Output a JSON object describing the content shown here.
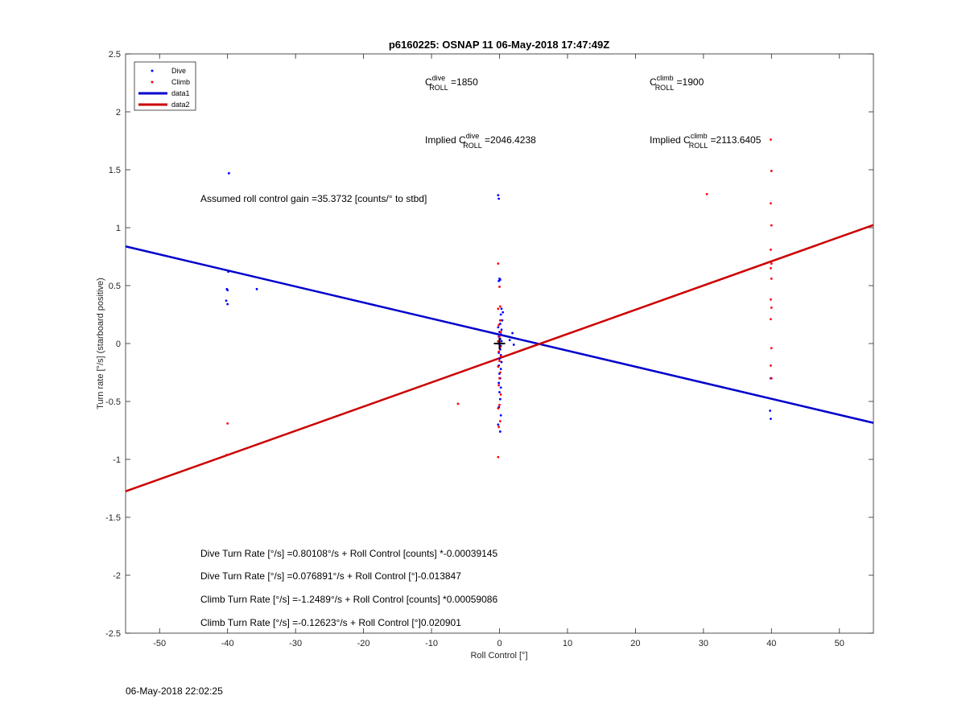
{
  "chart_data": {
    "type": "scatter",
    "title": "p6160225: OSNAP 11 06-May-2018 17:47:49Z",
    "xlabel": "Roll Control [°]",
    "ylabel": "Turn rate [°/s] (starboard positive)",
    "xlim": [
      -55,
      55
    ],
    "ylim": [
      -2.5,
      2.5
    ],
    "grid": true,
    "legend_placement": "top-left",
    "xticks": [
      -50,
      -40,
      -30,
      -20,
      -10,
      0,
      10,
      20,
      30,
      40,
      50
    ],
    "yticks": [
      -2.5,
      -2,
      -1.5,
      -1,
      -0.5,
      0,
      0.5,
      1,
      1.5,
      2,
      2.5
    ],
    "legend": [
      {
        "name": "Dive",
        "kind": "marker",
        "color": "#0000ff"
      },
      {
        "name": "Climb",
        "kind": "marker",
        "color": "#ff0000"
      },
      {
        "name": "data1",
        "kind": "line",
        "color": "#0000cc"
      },
      {
        "name": "data2",
        "kind": "line",
        "color": "#cc0000"
      }
    ],
    "series": [
      {
        "name": "Dive",
        "color": "#0000ff",
        "points": [
          [
            -39.8,
            1.47
          ],
          [
            -39.9,
            0.62
          ],
          [
            -40.1,
            0.47
          ],
          [
            -40,
            0.46
          ],
          [
            -40.2,
            0.37
          ],
          [
            -40,
            0.34
          ],
          [
            -35.7,
            0.47
          ],
          [
            -0.2,
            1.28
          ],
          [
            -0.1,
            1.25
          ],
          [
            0,
            0.56
          ],
          [
            0.1,
            0.55
          ],
          [
            -0.1,
            0.54
          ],
          [
            0.3,
            0.3
          ],
          [
            0.5,
            0.27
          ],
          [
            0.2,
            0.25
          ],
          [
            0.4,
            0.2
          ],
          [
            0.1,
            0.17
          ],
          [
            -0.2,
            0.14
          ],
          [
            0.3,
            0.12
          ],
          [
            0,
            0.1
          ],
          [
            0.2,
            0.08
          ],
          [
            -0.1,
            0.06
          ],
          [
            0.1,
            0.04
          ],
          [
            0.3,
            0.02
          ],
          [
            -0.2,
            0
          ],
          [
            0.2,
            -0.02
          ],
          [
            0.1,
            -0.05
          ],
          [
            -0.1,
            -0.08
          ],
          [
            0.2,
            -0.1
          ],
          [
            0,
            -0.13
          ],
          [
            0.3,
            -0.16
          ],
          [
            -0.1,
            -0.19
          ],
          [
            0.2,
            -0.22
          ],
          [
            0,
            -0.26
          ],
          [
            0.1,
            -0.3
          ],
          [
            -0.1,
            -0.34
          ],
          [
            0.2,
            -0.38
          ],
          [
            0,
            -0.42
          ],
          [
            0.1,
            -0.48
          ],
          [
            -0.1,
            -0.55
          ],
          [
            0.2,
            -0.62
          ],
          [
            -0.2,
            -0.7
          ],
          [
            0.1,
            -0.76
          ],
          [
            1.9,
            0.09
          ],
          [
            2.1,
            -0.01
          ],
          [
            1.5,
            0.03
          ],
          [
            39.9,
            -0.3
          ],
          [
            39.8,
            -0.58
          ],
          [
            39.9,
            -0.65
          ]
        ]
      },
      {
        "name": "Climb",
        "color": "#ff0000",
        "points": [
          [
            -40,
            -0.69
          ],
          [
            -40.1,
            -0.96
          ],
          [
            -6.1,
            -0.52
          ],
          [
            30.5,
            1.29
          ],
          [
            -0.2,
            0.69
          ],
          [
            0,
            0.49
          ],
          [
            0.1,
            0.32
          ],
          [
            -0.2,
            0.3
          ],
          [
            0.1,
            0.2
          ],
          [
            -0.1,
            0.16
          ],
          [
            0.2,
            0.1
          ],
          [
            0,
            0.06
          ],
          [
            -0.2,
            0.02
          ],
          [
            0.1,
            -0.03
          ],
          [
            -0.1,
            -0.07
          ],
          [
            0.2,
            -0.11
          ],
          [
            0,
            -0.15
          ],
          [
            -0.2,
            -0.2
          ],
          [
            0.1,
            -0.25
          ],
          [
            0,
            -0.3
          ],
          [
            -0.1,
            -0.36
          ],
          [
            0.2,
            -0.44
          ],
          [
            0,
            -0.53
          ],
          [
            -0.2,
            -0.56
          ],
          [
            0.1,
            -0.67
          ],
          [
            -0.1,
            -0.72
          ],
          [
            -0.2,
            -0.98
          ],
          [
            39.9,
            1.76
          ],
          [
            40,
            1.49
          ],
          [
            39.9,
            1.21
          ],
          [
            40,
            1.02
          ],
          [
            39.9,
            0.81
          ],
          [
            40,
            0.69
          ],
          [
            39.9,
            0.65
          ],
          [
            40,
            0.56
          ],
          [
            39.9,
            0.38
          ],
          [
            40,
            0.31
          ],
          [
            39.9,
            0.21
          ],
          [
            40,
            -0.04
          ],
          [
            39.9,
            -0.19
          ],
          [
            40,
            -0.3
          ]
        ]
      }
    ],
    "lines": [
      {
        "name": "data1",
        "color": "#0000cc",
        "intercept": 0.076891,
        "slope": -0.013847
      },
      {
        "name": "data2",
        "color": "#cc0000",
        "intercept": -0.12623,
        "slope": 0.020901
      }
    ],
    "marker_plus": {
      "x": 0,
      "y": 0
    },
    "annotations": {
      "c_dive_pre": "C",
      "c_dive_sup": "dive",
      "c_dive_sub": "ROLL",
      "c_dive_val": " =1850",
      "c_climb_pre": "C",
      "c_climb_sup": "climb",
      "c_climb_sub": "ROLL",
      "c_climb_val": " =1900",
      "imp_dive_pre": "Implied C",
      "imp_dive_sup": "dive",
      "imp_dive_sub": "ROLL",
      "imp_dive_val": " =2046.4238",
      "imp_climb_pre": "Implied C",
      "imp_climb_sup": "climb",
      "imp_climb_sub": "ROLL",
      "imp_climb_val": " =2113.6405",
      "gain": "Assumed roll control gain =35.3732 [counts/° to stbd]",
      "eq1": "Dive Turn Rate [°/s] =0.80108°/s + Roll Control [counts] *-0.00039145",
      "eq2": "Dive Turn Rate [°/s] =0.076891°/s + Roll Control [°]-0.013847",
      "eq3": "Climb Turn Rate [°/s] =-1.2489°/s + Roll Control [counts] *0.00059086",
      "eq4": "Climb Turn Rate [°/s] =-0.12623°/s + Roll Control [°]0.020901"
    }
  },
  "footer_timestamp": "06-May-2018 22:02:25"
}
